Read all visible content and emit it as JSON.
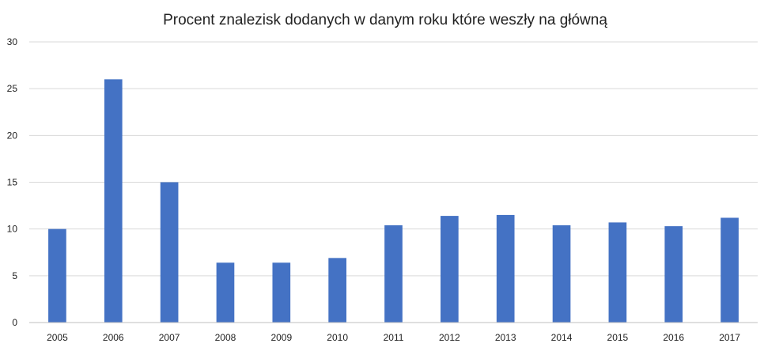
{
  "chart_data": {
    "type": "bar",
    "title": "Procent znalezisk dodanych w danym roku które weszły na główną",
    "xlabel": "",
    "ylabel": "",
    "categories": [
      "2005",
      "2006",
      "2007",
      "2008",
      "2009",
      "2010",
      "2011",
      "2012",
      "2013",
      "2014",
      "2015",
      "2016",
      "2017"
    ],
    "values": [
      10,
      26,
      15,
      6.4,
      6.4,
      6.9,
      10.4,
      11.4,
      11.5,
      10.4,
      10.7,
      10.3,
      11.2
    ],
    "ylim": [
      0,
      30
    ],
    "yticks": [
      "0",
      "5",
      "10",
      "15",
      "20",
      "25",
      "30"
    ],
    "grid": true,
    "legend": "none",
    "bar_color": "#4472c4"
  }
}
